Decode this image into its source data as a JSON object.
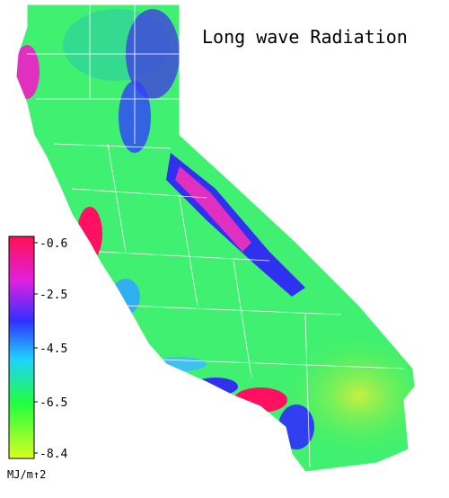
{
  "title": "Long wave Radiation",
  "colorbar": {
    "lim": [
      -8.4,
      -0.6
    ],
    "ticks": [
      -0.6,
      -2.5,
      -4.5,
      -6.5,
      -8.4
    ],
    "unit": "MJ/m↑2"
  }
}
